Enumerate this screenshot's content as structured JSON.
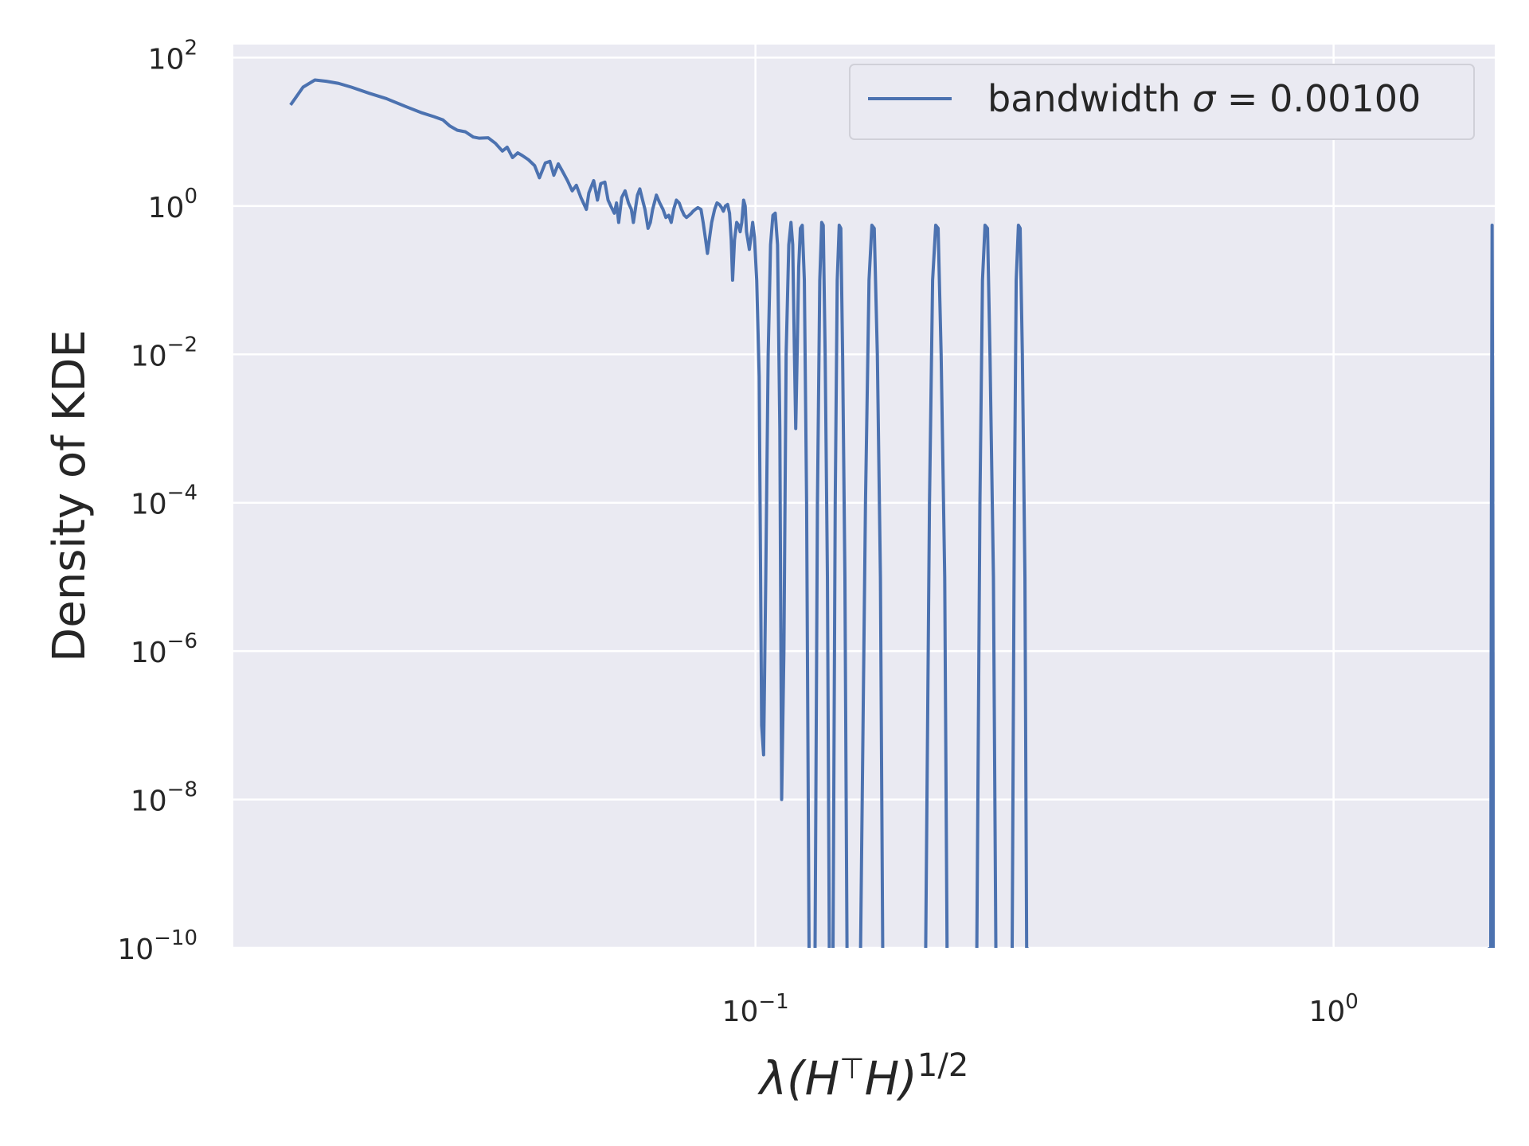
{
  "chart_data": {
    "type": "line",
    "xscale": "log",
    "yscale": "log",
    "xlim": [
      0.0125,
      1.9
    ],
    "ylim": [
      1e-10,
      150
    ],
    "xlabel_main": "λ(H",
    "xlabel_sup1": "⊤",
    "xlabel_mid": "H)",
    "xlabel_sup2": "1/2",
    "ylabel": "Density of KDE",
    "grid": true,
    "legend_position": "top-right",
    "x_ticks": [
      {
        "value": 0.1,
        "base": "10",
        "exp": "−1"
      },
      {
        "value": 1.0,
        "base": "10",
        "exp": "0"
      }
    ],
    "y_ticks": [
      {
        "value": 100,
        "base": "10",
        "exp": "2"
      },
      {
        "value": 1,
        "base": "10",
        "exp": "0"
      },
      {
        "value": 0.01,
        "base": "10",
        "exp": "−2"
      },
      {
        "value": 0.0001,
        "base": "10",
        "exp": "−4"
      },
      {
        "value": 1e-06,
        "base": "10",
        "exp": "−6"
      },
      {
        "value": 1e-08,
        "base": "10",
        "exp": "−8"
      },
      {
        "value": 1e-10,
        "base": "10",
        "exp": "−10"
      }
    ],
    "series": [
      {
        "name_prefix": "bandwidth ",
        "name_symbol": "σ",
        "name_suffix": " = 0.00100",
        "color": "#4c72b0",
        "points": [
          [
            0.0157,
            23.0
          ],
          [
            0.0165,
            40.0
          ],
          [
            0.0173,
            50.0
          ],
          [
            0.0181,
            48.0
          ],
          [
            0.019,
            45.0
          ],
          [
            0.02,
            40.0
          ],
          [
            0.0215,
            33.0
          ],
          [
            0.023,
            28.0
          ],
          [
            0.0248,
            22.0
          ],
          [
            0.0265,
            18.0
          ],
          [
            0.0278,
            16.0
          ],
          [
            0.0288,
            14.5
          ],
          [
            0.0296,
            12.0
          ],
          [
            0.0305,
            10.5
          ],
          [
            0.0315,
            10.0
          ],
          [
            0.0325,
            8.5
          ],
          [
            0.0333,
            8.2
          ],
          [
            0.0345,
            8.3
          ],
          [
            0.0355,
            7.0
          ],
          [
            0.0365,
            5.5
          ],
          [
            0.0372,
            6.2
          ],
          [
            0.038,
            4.5
          ],
          [
            0.0388,
            5.2
          ],
          [
            0.0395,
            4.8
          ],
          [
            0.0405,
            4.2
          ],
          [
            0.0415,
            3.5
          ],
          [
            0.0423,
            2.4
          ],
          [
            0.0433,
            3.8
          ],
          [
            0.0441,
            4.0
          ],
          [
            0.0448,
            2.6
          ],
          [
            0.0456,
            3.7
          ],
          [
            0.0463,
            3.0
          ],
          [
            0.0473,
            2.2
          ],
          [
            0.0482,
            1.6
          ],
          [
            0.049,
            1.9
          ],
          [
            0.0499,
            1.3
          ],
          [
            0.051,
            0.9
          ],
          [
            0.0515,
            1.5
          ],
          [
            0.0525,
            2.2
          ],
          [
            0.0533,
            1.2
          ],
          [
            0.054,
            2.0
          ],
          [
            0.0549,
            2.1
          ],
          [
            0.0556,
            1.2
          ],
          [
            0.0562,
            1.0
          ],
          [
            0.057,
            0.8
          ],
          [
            0.0575,
            1.1
          ],
          [
            0.058,
            0.6
          ],
          [
            0.0587,
            1.3
          ],
          [
            0.0595,
            1.6
          ],
          [
            0.0603,
            1.1
          ],
          [
            0.061,
            0.9
          ],
          [
            0.0615,
            0.6
          ],
          [
            0.0625,
            1.4
          ],
          [
            0.0631,
            1.7
          ],
          [
            0.0638,
            1.2
          ],
          [
            0.0644,
            0.9
          ],
          [
            0.0652,
            0.5
          ],
          [
            0.0658,
            0.6
          ],
          [
            0.0664,
            0.9
          ],
          [
            0.0674,
            1.4
          ],
          [
            0.0683,
            1.1
          ],
          [
            0.0692,
            0.9
          ],
          [
            0.07,
            0.7
          ],
          [
            0.0708,
            0.75
          ],
          [
            0.0715,
            0.6
          ],
          [
            0.0722,
            0.9
          ],
          [
            0.073,
            1.2
          ],
          [
            0.0738,
            1.1
          ],
          [
            0.0745,
            0.9
          ],
          [
            0.0753,
            0.75
          ],
          [
            0.076,
            0.7
          ],
          [
            0.0768,
            0.75
          ],
          [
            0.0775,
            0.8
          ],
          [
            0.078,
            0.85
          ],
          [
            0.0787,
            0.9
          ],
          [
            0.0795,
            0.95
          ],
          [
            0.0805,
            0.9
          ],
          [
            0.0812,
            0.6
          ],
          [
            0.082,
            0.35
          ],
          [
            0.0826,
            0.23
          ],
          [
            0.0832,
            0.35
          ],
          [
            0.084,
            0.6
          ],
          [
            0.085,
            0.9
          ],
          [
            0.0858,
            1.1
          ],
          [
            0.0866,
            1.05
          ],
          [
            0.0874,
            0.95
          ],
          [
            0.088,
            0.85
          ],
          [
            0.0887,
            1.0
          ],
          [
            0.0895,
            1.05
          ],
          [
            0.0902,
            0.8
          ],
          [
            0.0908,
            0.35
          ],
          [
            0.0913,
            0.1
          ],
          [
            0.092,
            0.35
          ],
          [
            0.0928,
            0.6
          ],
          [
            0.0935,
            0.55
          ],
          [
            0.0941,
            0.45
          ],
          [
            0.0947,
            0.6
          ],
          [
            0.0954,
            1.2
          ],
          [
            0.096,
            1.0
          ],
          [
            0.0965,
            0.45
          ],
          [
            0.097,
            0.35
          ],
          [
            0.0976,
            0.26
          ],
          [
            0.0983,
            0.4
          ],
          [
            0.0989,
            0.6
          ],
          [
            0.0996,
            0.38
          ],
          [
            0.1005,
            0.1
          ],
          [
            0.1015,
            0.005
          ],
          [
            0.1025,
            1e-07
          ],
          [
            0.1033,
            4e-08
          ],
          [
            0.1042,
            1e-05
          ],
          [
            0.1052,
            0.01
          ],
          [
            0.1062,
            0.3
          ],
          [
            0.1072,
            0.75
          ],
          [
            0.1082,
            0.8
          ],
          [
            0.1092,
            0.3
          ],
          [
            0.1102,
            0.001
          ],
          [
            0.111,
            1e-08
          ],
          [
            0.112,
            1e-06
          ],
          [
            0.113,
            0.01
          ],
          [
            0.1142,
            0.3
          ],
          [
            0.1152,
            0.6
          ],
          [
            0.116,
            0.3
          ],
          [
            0.1168,
            0.01
          ],
          [
            0.1174,
            0.001
          ],
          [
            0.118,
            0.008
          ],
          [
            0.1188,
            0.15
          ],
          [
            0.1196,
            0.5
          ],
          [
            0.1205,
            0.55
          ],
          [
            0.1215,
            0.1
          ],
          [
            0.1226,
            0.0001
          ],
          [
            0.1238,
            1e-10
          ],
          [
            0.1252,
            1e-12
          ],
          [
            0.1268,
            1e-10
          ],
          [
            0.128,
            0.0001
          ],
          [
            0.1292,
            0.1
          ],
          [
            0.1302,
            0.6
          ],
          [
            0.131,
            0.55
          ],
          [
            0.132,
            0.01
          ],
          [
            0.1332,
            1e-05
          ],
          [
            0.1342,
            1e-10
          ],
          [
            0.1352,
            1e-12
          ],
          [
            0.1362,
            1e-10
          ],
          [
            0.1374,
            0.0001
          ],
          [
            0.1385,
            0.1
          ],
          [
            0.1396,
            0.55
          ],
          [
            0.1405,
            0.5
          ],
          [
            0.1415,
            0.01
          ],
          [
            0.1428,
            1e-05
          ],
          [
            0.144,
            1e-10
          ],
          [
            0.148,
            1e-12
          ],
          [
            0.152,
            1e-10
          ],
          [
            0.155,
            0.0001
          ],
          [
            0.1572,
            0.1
          ],
          [
            0.159,
            0.55
          ],
          [
            0.1605,
            0.5
          ],
          [
            0.1625,
            0.01
          ],
          [
            0.1645,
            1e-05
          ],
          [
            0.166,
            1e-10
          ],
          [
            0.185,
            1e-12
          ],
          [
            0.197,
            1e-10
          ],
          [
            0.2,
            0.0001
          ],
          [
            0.2025,
            0.1
          ],
          [
            0.205,
            0.55
          ],
          [
            0.207,
            0.5
          ],
          [
            0.2095,
            0.01
          ],
          [
            0.2125,
            1e-05
          ],
          [
            0.2145,
            1e-10
          ],
          [
            0.23,
            1e-12
          ],
          [
            0.2415,
            1e-10
          ],
          [
            0.2445,
            0.0001
          ],
          [
            0.247,
            0.1
          ],
          [
            0.2495,
            0.55
          ],
          [
            0.252,
            0.5
          ],
          [
            0.2545,
            0.01
          ],
          [
            0.258,
            1e-05
          ],
          [
            0.2605,
            1e-10
          ],
          [
            0.268,
            1e-12
          ],
          [
            0.278,
            1e-10
          ],
          [
            0.2805,
            0.0001
          ],
          [
            0.2825,
            0.1
          ],
          [
            0.285,
            0.55
          ],
          [
            0.287,
            0.5
          ],
          [
            0.2895,
            0.01
          ],
          [
            0.2925,
            1e-05
          ],
          [
            0.2945,
            1e-10
          ],
          [
            0.6,
            1e-12
          ],
          [
            1.87,
            1e-10
          ],
          [
            1.875,
            0.0001
          ],
          [
            1.88,
            0.55
          ],
          [
            1.884,
            0.001
          ],
          [
            1.89,
            1e-10
          ]
        ]
      }
    ]
  }
}
